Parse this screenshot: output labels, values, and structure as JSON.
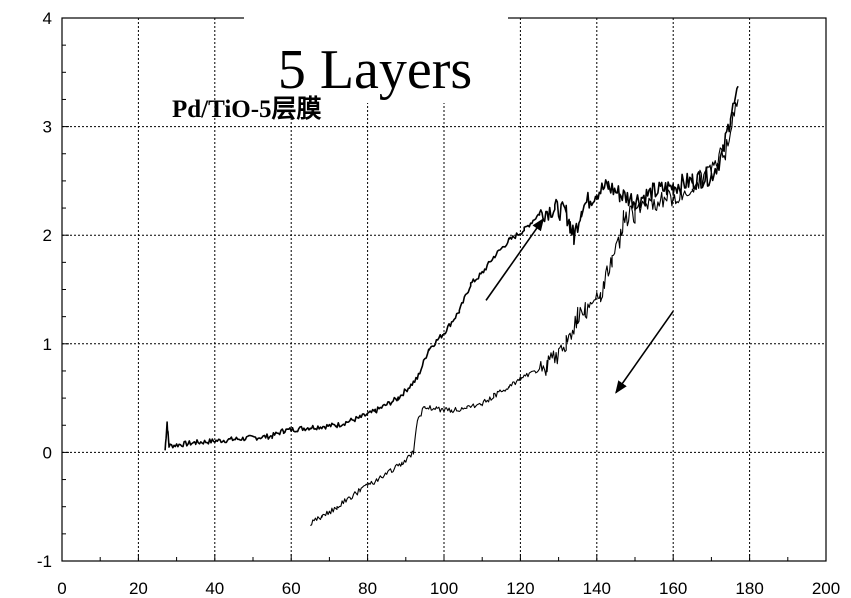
{
  "chart_data": {
    "type": "line",
    "title": "5 Layers",
    "subtitle": "Pd/TiO-5层膜",
    "xlabel": "",
    "ylabel": "",
    "xlim": [
      0,
      200
    ],
    "ylim": [
      -1,
      4
    ],
    "x_ticks": [
      0,
      20,
      40,
      60,
      80,
      100,
      120,
      140,
      160,
      180,
      200
    ],
    "y_ticks": [
      -1,
      0,
      1,
      2,
      3,
      4
    ],
    "grid": true,
    "series": [
      {
        "points": [
          [
            27,
            0.02
          ],
          [
            27.5,
            0.28
          ],
          [
            28,
            0.06
          ],
          [
            35,
            0.09
          ],
          [
            45,
            0.12
          ],
          [
            55,
            0.15
          ],
          [
            58,
            0.2
          ],
          [
            65,
            0.23
          ],
          [
            72,
            0.25
          ],
          [
            78,
            0.32
          ],
          [
            82,
            0.38
          ],
          [
            88,
            0.5
          ],
          [
            93,
            0.68
          ],
          [
            96,
            0.95
          ],
          [
            100,
            1.1
          ],
          [
            104,
            1.3
          ],
          [
            107,
            1.55
          ],
          [
            110,
            1.65
          ],
          [
            113,
            1.8
          ],
          [
            117,
            1.95
          ],
          [
            121,
            2.05
          ],
          [
            125,
            2.2
          ],
          [
            129,
            2.25
          ],
          [
            132,
            2.2
          ],
          [
            133,
            2.1
          ],
          [
            134,
            1.98
          ],
          [
            136,
            2.25
          ],
          [
            140,
            2.4
          ],
          [
            143,
            2.45
          ],
          [
            146,
            2.38
          ],
          [
            150,
            2.32
          ],
          [
            155,
            2.4
          ],
          [
            160,
            2.45
          ],
          [
            165,
            2.5
          ],
          [
            170,
            2.55
          ],
          [
            173,
            2.75
          ],
          [
            175,
            3.1
          ],
          [
            177,
            3.3
          ]
        ]
      },
      {
        "points": [
          [
            177,
            3.3
          ],
          [
            174,
            2.8
          ],
          [
            170,
            2.6
          ],
          [
            165,
            2.45
          ],
          [
            160,
            2.35
          ],
          [
            155,
            2.3
          ],
          [
            150,
            2.2
          ],
          [
            147,
            2.15
          ],
          [
            146,
            1.95
          ],
          [
            144,
            1.78
          ],
          [
            142,
            1.6
          ],
          [
            141,
            1.4
          ],
          [
            139,
            1.45
          ],
          [
            137,
            1.3
          ],
          [
            135,
            1.25
          ],
          [
            132,
            1.0
          ],
          [
            130,
            0.9
          ],
          [
            127,
            0.8
          ],
          [
            124,
            0.75
          ],
          [
            120,
            0.68
          ],
          [
            117,
            0.6
          ],
          [
            113,
            0.52
          ],
          [
            110,
            0.45
          ],
          [
            106,
            0.42
          ],
          [
            102,
            0.38
          ],
          [
            98,
            0.4
          ],
          [
            95,
            0.42
          ],
          [
            93,
            0.3
          ],
          [
            92,
            0.0
          ],
          [
            89,
            -0.1
          ],
          [
            84,
            -0.22
          ],
          [
            78,
            -0.35
          ],
          [
            72,
            -0.5
          ],
          [
            68,
            -0.6
          ],
          [
            65,
            -0.65
          ]
        ]
      }
    ],
    "arrows": [
      {
        "direction": "up",
        "from": [
          111,
          1.4
        ],
        "to": [
          126,
          2.15
        ]
      },
      {
        "direction": "down",
        "from": [
          160,
          1.3
        ],
        "to": [
          145,
          0.55
        ]
      }
    ]
  }
}
